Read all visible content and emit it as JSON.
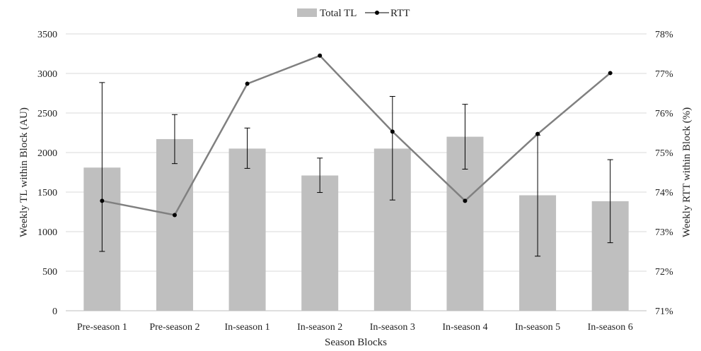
{
  "chart_data": {
    "type": "bar",
    "title": "",
    "xlabel": "Season Blocks",
    "ylabel_left": "Weekly TL within Block (AU)",
    "ylabel_right": "Weekly RTT within Block (%)",
    "categories": [
      "Pre-season 1",
      "Pre-season 2",
      "In-season 1",
      "In-season 2",
      "In-season 3",
      "In-season 4",
      "In-season 5",
      "In-season 6"
    ],
    "ylim_left": [
      0,
      3500
    ],
    "yticks_left": [
      "0",
      "500",
      "1000",
      "1500",
      "2000",
      "2500",
      "3000",
      "3500"
    ],
    "ylim_right": [
      71,
      78
    ],
    "yticks_right": [
      "71%",
      "72%",
      "73%",
      "74%",
      "75%",
      "76%",
      "77%",
      "78%"
    ],
    "series": [
      {
        "name": "Total TL",
        "type": "bar",
        "axis": "left",
        "color": "#bfbfbf",
        "values": [
          1810,
          2170,
          2050,
          1710,
          2050,
          2200,
          1460,
          1385
        ],
        "error_high": [
          2885,
          2480,
          2310,
          1930,
          2710,
          2610,
          2220,
          1910
        ],
        "error_low": [
          750,
          1860,
          1800,
          1495,
          1400,
          1790,
          690,
          860
        ]
      },
      {
        "name": "RTT",
        "type": "line",
        "axis": "right",
        "color": "#808080",
        "marker_color": "#000000",
        "values": [
          73.78,
          73.42,
          76.74,
          77.45,
          75.53,
          73.78,
          75.47,
          77.01
        ]
      }
    ],
    "legend": "top-center",
    "grid": true
  }
}
